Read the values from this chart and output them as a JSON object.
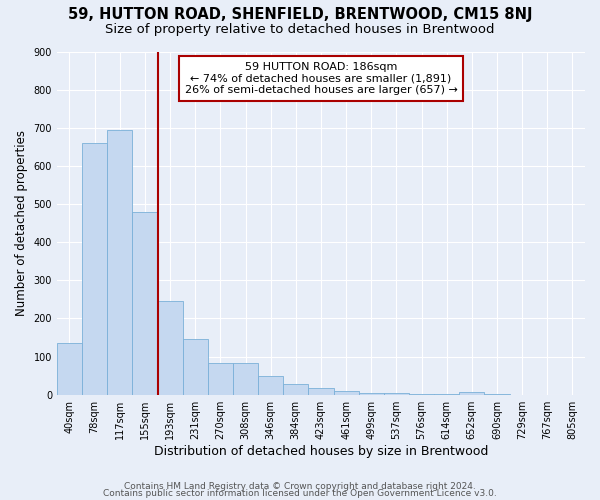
{
  "title": "59, HUTTON ROAD, SHENFIELD, BRENTWOOD, CM15 8NJ",
  "subtitle": "Size of property relative to detached houses in Brentwood",
  "xlabel": "Distribution of detached houses by size in Brentwood",
  "ylabel": "Number of detached properties",
  "categories": [
    "40sqm",
    "78sqm",
    "117sqm",
    "155sqm",
    "193sqm",
    "231sqm",
    "270sqm",
    "308sqm",
    "346sqm",
    "384sqm",
    "423sqm",
    "461sqm",
    "499sqm",
    "537sqm",
    "576sqm",
    "614sqm",
    "652sqm",
    "690sqm",
    "729sqm",
    "767sqm",
    "805sqm"
  ],
  "values": [
    135,
    660,
    695,
    480,
    247,
    147,
    83,
    83,
    48,
    28,
    18,
    10,
    5,
    5,
    3,
    3,
    8,
    3,
    0,
    0,
    0
  ],
  "bar_color": "#c5d8f0",
  "bar_edge_color": "#7ab0d8",
  "bar_width": 1.0,
  "property_line_color": "#aa0000",
  "annotation_text": "59 HUTTON ROAD: 186sqm\n← 74% of detached houses are smaller (1,891)\n26% of semi-detached houses are larger (657) →",
  "annotation_box_color": "white",
  "annotation_box_edge_color": "#aa0000",
  "ylim": [
    0,
    900
  ],
  "yticks": [
    0,
    100,
    200,
    300,
    400,
    500,
    600,
    700,
    800,
    900
  ],
  "bg_color": "#e8eef8",
  "grid_color": "white",
  "footer_line1": "Contains HM Land Registry data © Crown copyright and database right 2024.",
  "footer_line2": "Contains public sector information licensed under the Open Government Licence v3.0.",
  "title_fontsize": 10.5,
  "subtitle_fontsize": 9.5,
  "xlabel_fontsize": 9,
  "ylabel_fontsize": 8.5,
  "tick_fontsize": 7,
  "annotation_fontsize": 8,
  "footer_fontsize": 6.5
}
